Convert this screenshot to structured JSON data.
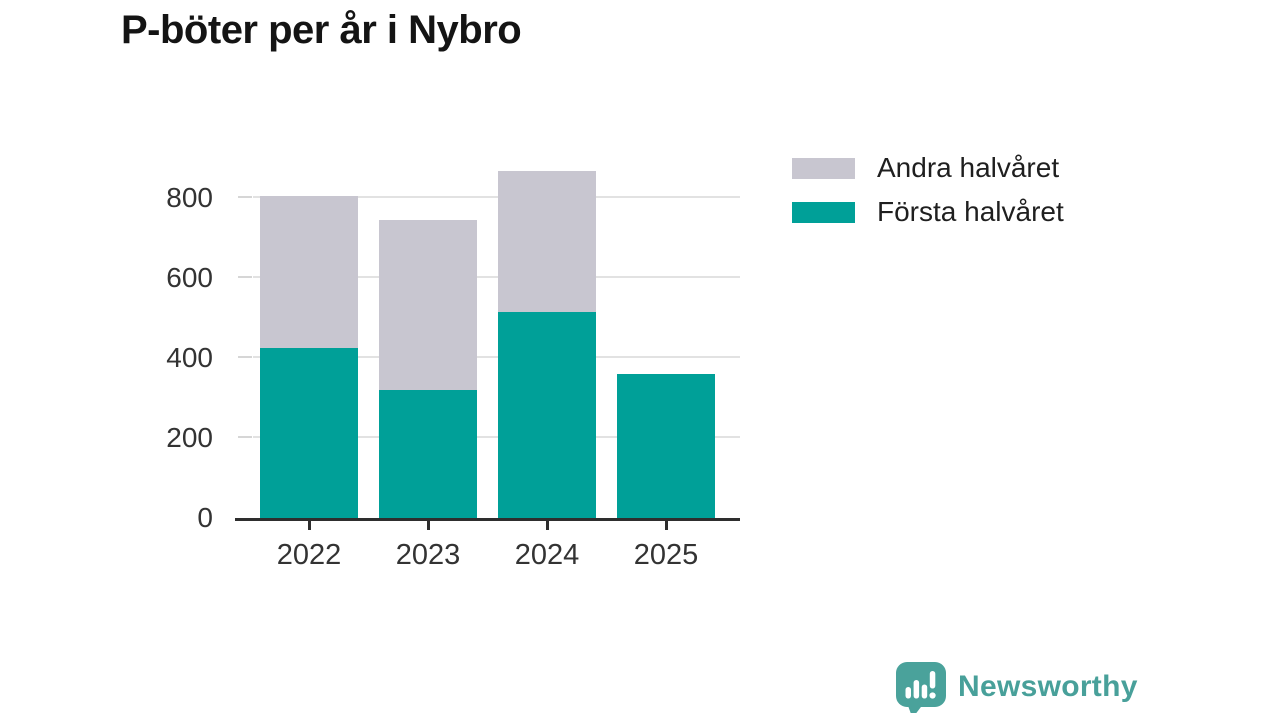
{
  "title": "P-böter per år i Nybro",
  "chart_data": {
    "type": "bar",
    "stacked": true,
    "categories": [
      "2022",
      "2023",
      "2024",
      "2025"
    ],
    "series": [
      {
        "name": "Första halvåret",
        "color": "#00A098",
        "values": [
          425,
          320,
          515,
          360
        ]
      },
      {
        "name": "Andra halvåret",
        "color": "#C8C6D0",
        "values": [
          380,
          425,
          350,
          0
        ]
      }
    ],
    "title": "P-böter per år i Nybro",
    "xlabel": "",
    "ylabel": "",
    "yticks": [
      0,
      200,
      400,
      600,
      800
    ],
    "ylim": [
      0,
      880
    ],
    "grid": "horizontal",
    "legend_position": "top-right"
  },
  "legend": {
    "items": [
      {
        "label": "Andra halvåret",
        "color": "#C8C6D0"
      },
      {
        "label": "Första halvåret",
        "color": "#00A098"
      }
    ]
  },
  "footer": {
    "brand": "Newsworthy",
    "logo_color": "#48a09a"
  }
}
